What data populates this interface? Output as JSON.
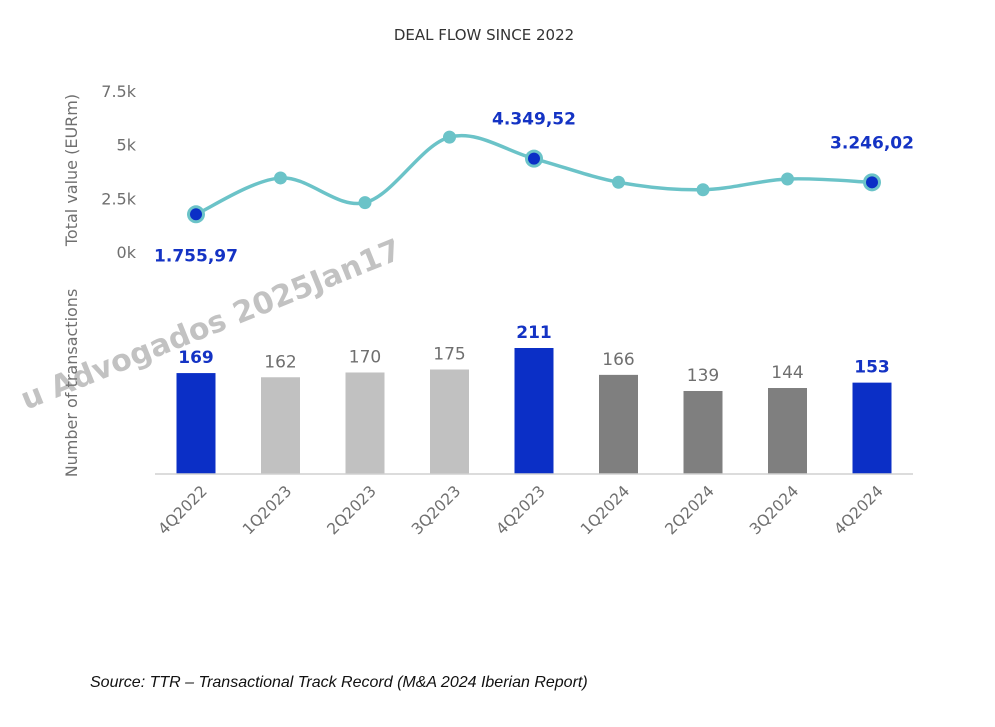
{
  "chart_data": {
    "type": "bar",
    "title": "DEAL FLOW SINCE 2022",
    "categories": [
      "4Q2022",
      "1Q2023",
      "2Q2023",
      "3Q2023",
      "4Q2023",
      "1Q2024",
      "2Q2024",
      "3Q2024",
      "4Q2024"
    ],
    "bars": {
      "name": "Number of transactions",
      "ylabel": "Number of transactions",
      "values": [
        169,
        162,
        170,
        175,
        211,
        166,
        139,
        144,
        153
      ],
      "ylim": [
        0,
        211
      ],
      "groups": [
        "highlight",
        "2023",
        "2023",
        "2023",
        "highlight",
        "2024",
        "2024",
        "2024",
        "highlight"
      ]
    },
    "line": {
      "type": "line",
      "name": "Total value (EURm)",
      "ylabel": "Total value (EURm)",
      "values": [
        1755.97,
        3450,
        2300,
        5350,
        4349.52,
        3250,
        2900,
        3400,
        3246.02
      ],
      "ylim": [
        0,
        7500
      ],
      "yticks": [
        "0k",
        "2.5k",
        "5k",
        "7.5k"
      ],
      "highlight_indices": [
        0,
        4,
        8
      ],
      "data_labels": [
        {
          "index": 0,
          "text": "1.755,97"
        },
        {
          "index": 4,
          "text": "4.349,52"
        },
        {
          "index": 8,
          "text": "3.246,02"
        }
      ]
    },
    "colors": {
      "highlight": "#0b2fc6",
      "2023": "#c1c1c1",
      "2024": "#7f7f7f",
      "line": "#6bc3c8",
      "line_marker": "#6bc3c8",
      "highlight_marker": "#0b2fc6"
    },
    "grid": false
  },
  "watermark": "u Advogados 2025Jan17",
  "source": "Source: TTR – Transactional Track Record (M&A 2024 Iberian Report)"
}
